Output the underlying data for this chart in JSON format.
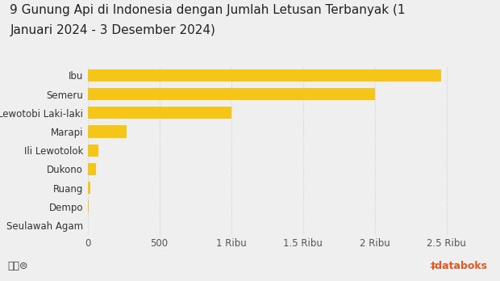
{
  "title_line1": "9 Gunung Api di Indonesia dengan Jumlah Letusan Terbanyak (1",
  "title_line2": "Januari 2024 - 3 Desember 2024)",
  "categories": [
    "Ibu",
    "Semeru",
    "Lewotobi Laki-laki",
    "Marapi",
    "Ili Lewotolok",
    "Dukono",
    "Ruang",
    "Dempo",
    "Seulawah Agam"
  ],
  "values": [
    2460,
    2000,
    1000,
    270,
    75,
    60,
    18,
    10,
    5
  ],
  "bar_color": "#F5C518",
  "background_color": "#EFEFEF",
  "title_fontsize": 11,
  "tick_label_fontsize": 8.5,
  "xtick_fontsize": 8.5,
  "xlabel_ticks": [
    0,
    500,
    1000,
    1500,
    2000,
    2500
  ],
  "xlabel_labels": [
    "0",
    "500",
    "1 Ribu",
    "1.5 Ribu",
    "2 Ribu",
    "2.5 Ribu"
  ],
  "xlim": [
    0,
    2750
  ],
  "grid_color": "#CCCCCC",
  "bar_height": 0.65,
  "databoks_color": "#E05A20",
  "databoks_wave_color": "#3BB8C3"
}
